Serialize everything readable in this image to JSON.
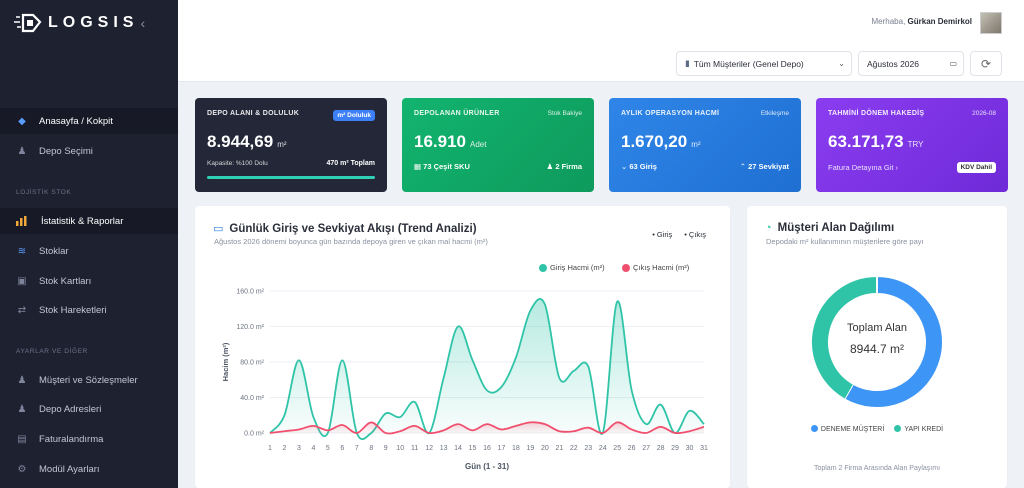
{
  "brand": {
    "logo_text": "LOGSIS",
    "collapse_glyph": "‹"
  },
  "sidebar": {
    "items": [
      {
        "label": "Anasayfa / Kokpit",
        "icon": "layers-icon",
        "active": true
      },
      {
        "label": "Depo Seçimi",
        "icon": "user-icon"
      }
    ],
    "section_stock": "LOJİSTİK STOK",
    "stock_items": [
      {
        "label": "İstatistik & Raporlar",
        "icon": "bar-chart-icon",
        "active": true
      },
      {
        "label": "Stoklar",
        "icon": "database-icon"
      },
      {
        "label": "Stok Kartları",
        "icon": "cards-icon"
      },
      {
        "label": "Stok Hareketleri",
        "icon": "transfer-icon"
      }
    ],
    "section_settings": "AYARLAR VE DİĞER",
    "settings_items": [
      {
        "label": "Müşteri ve Sözleşmeler",
        "icon": "users-icon"
      },
      {
        "label": "Depo Adresleri",
        "icon": "user-icon"
      },
      {
        "label": "Faturalandırma",
        "icon": "document-icon"
      },
      {
        "label": "Modül Ayarları",
        "icon": "gear-icon"
      }
    ]
  },
  "header": {
    "greeting_prefix": "Merhaba,",
    "user_name": "Gürkan Demirkol",
    "customer_select": "Tüm Müşteriler (Genel Depo)",
    "month_select": "Ağustos 2026"
  },
  "cards": [
    {
      "title": "DEPO ALANI & DOLULUK",
      "badge": "m² Doluluk",
      "value": "8.944,69",
      "unit": "m²",
      "foot_left": "Kapasite: %100 Dolu",
      "foot_right": "470 m² Toplam",
      "fill_percent": 100
    },
    {
      "title": "DEPOLANAN ÜRÜNLER",
      "badge": "Stok Bakiye",
      "value": "16.910",
      "unit": "Adet",
      "foot_left": "73 Çeşit SKU",
      "foot_right": "2 Firma"
    },
    {
      "title": "AYLIK OPERASYON HACMİ",
      "badge": "Etkileşme",
      "value": "1.670,20",
      "unit": "m²",
      "foot_left": "63 Giriş",
      "foot_right": "27 Sevkiyat"
    },
    {
      "title": "TAHMİNİ DÖNEM HAKEDİŞ",
      "badge": "2026-08",
      "value": "63.171,73",
      "unit": "TRY",
      "foot_left": "Fatura Detayına Git",
      "foot_right": "KDV Dahil"
    }
  ],
  "trend": {
    "title": "Günlük Giriş ve Sevkiyat Akışı (Trend Analizi)",
    "subtitle": "Ağustos 2026 dönemi boyunca gün bazında depoya giren ve çıkan mal hacmi (m²)",
    "toggle_in": "Giriş",
    "toggle_out": "Çıkış"
  },
  "distribution": {
    "title": "Müşteri Alan Dağılımı",
    "subtitle": "Depodaki m² kullanımının müşterilere göre payı",
    "center_label": "Toplam Alan",
    "center_value": "8944.7 m²",
    "footer": "Toplam 2 Firma Arasında Alan Paylaşımı"
  },
  "chart_data": [
    {
      "type": "area",
      "xlabel": "Gün (1 - 31)",
      "ylabel": "Hacim (m²)",
      "ylim": [
        0,
        160
      ],
      "y_ticks": [
        "0.0 m²",
        "40.0 m²",
        "80.0 m²",
        "120.0 m²",
        "160.0 m²"
      ],
      "x": [
        1,
        2,
        3,
        4,
        5,
        6,
        7,
        8,
        9,
        10,
        11,
        12,
        13,
        14,
        15,
        16,
        17,
        18,
        19,
        20,
        21,
        22,
        23,
        24,
        25,
        26,
        27,
        28,
        29,
        30,
        31
      ],
      "series": [
        {
          "name": "Giriş Hacmi (m²)",
          "color": "#2fc4a8",
          "values": [
            0,
            20,
            82,
            18,
            0,
            82,
            0,
            0,
            22,
            18,
            35,
            0,
            62,
            120,
            82,
            48,
            52,
            85,
            138,
            145,
            62,
            70,
            75,
            0,
            148,
            48,
            10,
            32,
            0,
            25,
            10
          ]
        },
        {
          "name": "Çıkış Hacmi (m²)",
          "color": "#f0506e",
          "values": [
            0,
            2,
            4,
            8,
            3,
            9,
            0,
            12,
            0,
            2,
            8,
            0,
            3,
            10,
            3,
            10,
            4,
            8,
            12,
            10,
            2,
            2,
            6,
            0,
            12,
            4,
            0,
            7,
            0,
            2,
            7
          ]
        }
      ]
    },
    {
      "type": "pie",
      "slices": [
        {
          "name": "DENEME MÜŞTERİ",
          "value": 5210,
          "color": "#3d95f5"
        },
        {
          "name": "YAPI KREDİ",
          "value": 3734.7,
          "color": "#2fc4a8"
        }
      ]
    }
  ]
}
